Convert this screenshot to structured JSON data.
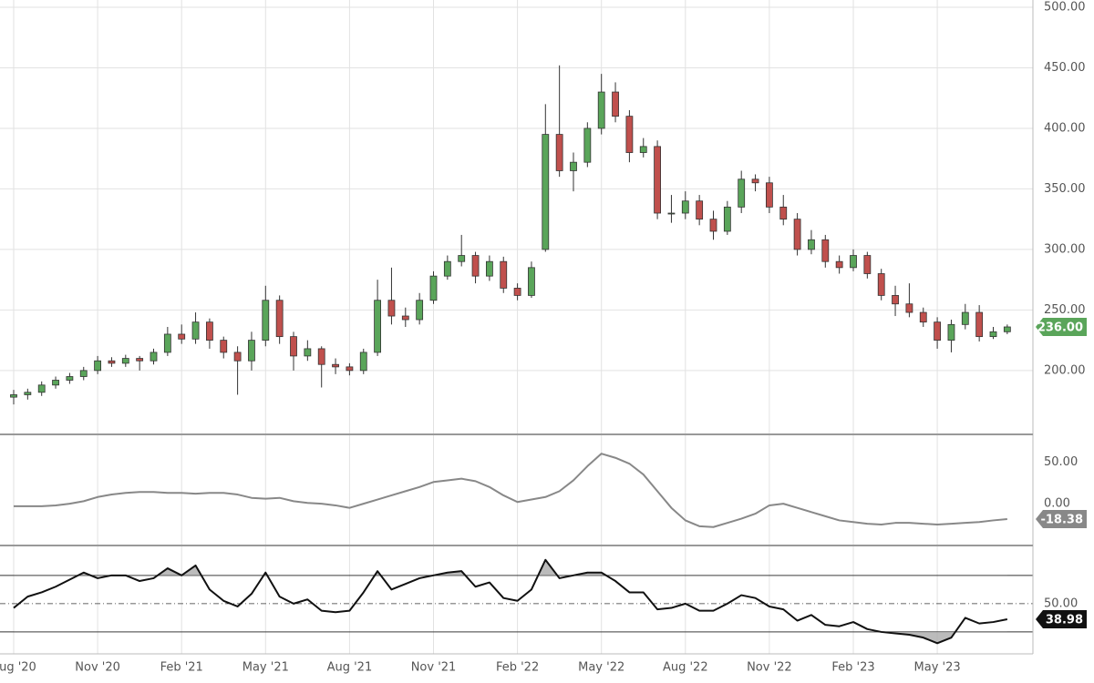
{
  "chart_data": [
    {
      "type": "candlestick",
      "categories": [
        "Aug '20",
        null,
        null,
        null,
        null,
        null,
        "Nov '20",
        null,
        null,
        null,
        null,
        null,
        "Feb '21",
        null,
        null,
        null,
        null,
        null,
        "May '21",
        null,
        null,
        null,
        null,
        null,
        "Aug '21",
        null,
        null,
        null,
        null,
        null,
        "Nov '21",
        null,
        null,
        null,
        null,
        null,
        "Feb '22",
        null,
        null,
        null,
        null,
        null,
        "May '22",
        null,
        null,
        null,
        null,
        null,
        "Aug '22",
        null,
        null,
        null,
        null,
        null,
        "Nov '22",
        null,
        null,
        null,
        null,
        null,
        "Feb '23",
        null,
        null,
        null,
        null,
        null,
        "May '23",
        null,
        null,
        null,
        null,
        null
      ],
      "open": [
        178,
        180,
        182,
        188,
        192,
        195,
        200,
        208,
        206,
        210,
        208,
        215,
        230,
        226,
        240,
        225,
        215,
        208,
        225,
        258,
        228,
        212,
        218,
        205,
        203,
        200,
        215,
        258,
        245,
        242,
        258,
        278,
        290,
        295,
        278,
        290,
        268,
        262,
        300,
        395,
        365,
        372,
        400,
        430,
        410,
        380,
        385,
        330,
        330,
        340,
        325,
        315,
        335,
        358,
        355,
        335,
        325,
        300,
        308,
        290,
        285,
        295,
        280,
        262,
        255,
        248,
        240,
        225,
        238,
        248,
        228,
        232
      ],
      "high": [
        184,
        185,
        191,
        195,
        198,
        203,
        212,
        211,
        213,
        212,
        218,
        236,
        238,
        248,
        243,
        228,
        220,
        232,
        270,
        262,
        232,
        225,
        220,
        210,
        206,
        218,
        275,
        285,
        252,
        264,
        282,
        295,
        312,
        298,
        295,
        294,
        272,
        290,
        420,
        452,
        380,
        405,
        445,
        438,
        415,
        392,
        390,
        345,
        348,
        345,
        332,
        340,
        365,
        362,
        360,
        345,
        330,
        316,
        312,
        295,
        300,
        298,
        284,
        270,
        272,
        252,
        244,
        242,
        255,
        254,
        236,
        238
      ],
      "low": [
        172,
        176,
        179,
        185,
        189,
        192,
        197,
        203,
        203,
        200,
        205,
        212,
        222,
        222,
        218,
        210,
        180,
        200,
        220,
        222,
        200,
        208,
        186,
        197,
        196,
        197,
        212,
        238,
        236,
        238,
        255,
        275,
        286,
        272,
        274,
        264,
        258,
        260,
        298,
        360,
        348,
        368,
        395,
        405,
        372,
        376,
        325,
        322,
        325,
        320,
        308,
        312,
        330,
        348,
        330,
        320,
        295,
        296,
        285,
        280,
        282,
        276,
        258,
        245,
        244,
        236,
        218,
        215,
        234,
        224,
        226,
        230
      ],
      "close": [
        180,
        182,
        188,
        192,
        195,
        200,
        208,
        206,
        210,
        208,
        215,
        230,
        226,
        240,
        225,
        215,
        208,
        225,
        258,
        228,
        212,
        218,
        205,
        203,
        200,
        215,
        258,
        245,
        242,
        258,
        278,
        290,
        295,
        278,
        290,
        268,
        262,
        285,
        395,
        365,
        372,
        400,
        430,
        410,
        380,
        385,
        330,
        330,
        340,
        325,
        315,
        335,
        358,
        355,
        335,
        325,
        300,
        308,
        290,
        285,
        295,
        280,
        262,
        255,
        248,
        240,
        225,
        238,
        248,
        228,
        232,
        236
      ],
      "up_color": "#5aa55a",
      "down_color": "#c0504d",
      "badge_color": "#5aa55a",
      "last_label": "236.00",
      "ylim": [
        148,
        506
      ],
      "yticks": [
        {
          "value": 200,
          "label": "200.00"
        },
        {
          "value": 250,
          "label": "250.00"
        },
        {
          "value": 300,
          "label": "300.00"
        },
        {
          "value": 350,
          "label": "350.00"
        },
        {
          "value": 400,
          "label": "400.00"
        },
        {
          "value": 450,
          "label": "450.00"
        },
        {
          "value": 500,
          "label": "500.00"
        }
      ],
      "grid": true
    },
    {
      "type": "line",
      "values": [
        -3,
        -3,
        -3,
        -2,
        0,
        3,
        8,
        11,
        13,
        14,
        14,
        13,
        13,
        12,
        13,
        13,
        11,
        7,
        6,
        7,
        3,
        1,
        0,
        -2,
        -5,
        0,
        5,
        10,
        15,
        20,
        26,
        28,
        30,
        27,
        20,
        10,
        2,
        5,
        8,
        15,
        28,
        45,
        60,
        55,
        48,
        35,
        15,
        -5,
        -20,
        -27,
        -28,
        -23,
        -18,
        -12,
        -2,
        0,
        -5,
        -10,
        -15,
        -20,
        -22,
        -24,
        -25,
        -23,
        -23,
        -24,
        -25,
        -24,
        -23,
        -22,
        -20,
        -18.38
      ],
      "color": "#888888",
      "ylim": [
        -49,
        82
      ],
      "yticks": [
        {
          "value": 0,
          "label": "0.00"
        },
        {
          "value": 50,
          "label": "50.00"
        }
      ]
    },
    {
      "type": "line",
      "values": [
        47,
        55,
        58,
        62,
        67,
        72,
        68,
        70,
        70,
        66,
        68,
        75,
        70,
        77,
        60,
        52,
        48,
        57,
        72,
        55,
        50,
        53,
        45,
        44,
        45,
        58,
        73,
        60,
        64,
        68,
        70,
        72,
        73,
        62,
        65,
        54,
        52,
        60,
        81,
        68,
        70,
        72,
        72,
        66,
        58,
        58,
        46,
        47,
        50,
        45,
        45,
        50,
        56,
        54,
        48,
        46,
        38,
        42,
        35,
        34,
        37,
        32,
        30,
        29,
        28,
        26,
        22,
        26,
        40,
        36,
        37,
        38.98
      ],
      "color": "#111111",
      "ylim": [
        14.5,
        90.5
      ],
      "yticks": [
        {
          "value": 50,
          "label": "50.00"
        }
      ],
      "reference_lines": [
        70,
        30
      ],
      "shade_color": "#aaaaaa"
    }
  ]
}
